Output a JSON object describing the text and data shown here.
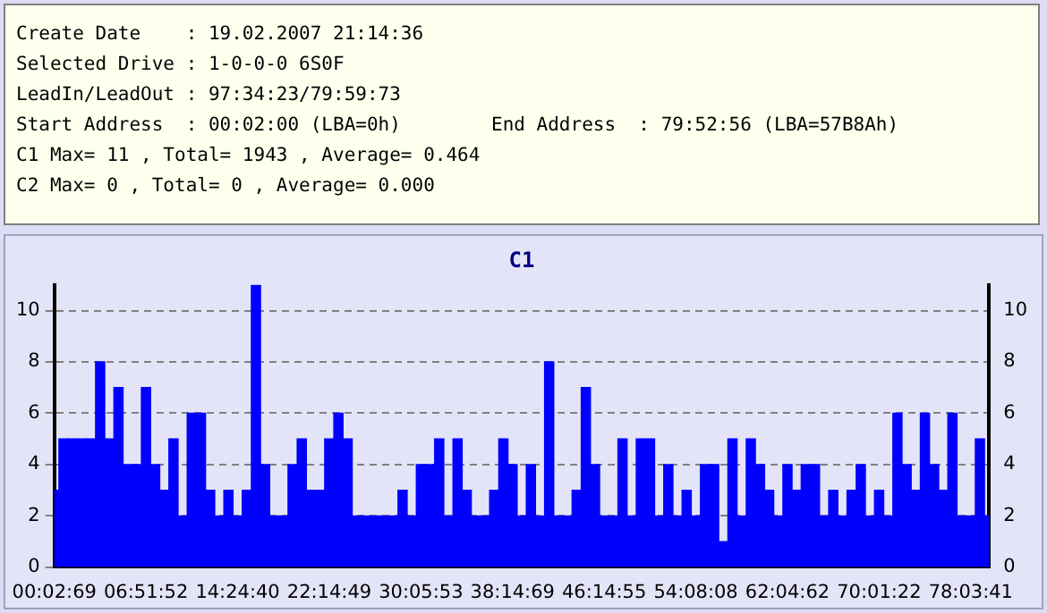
{
  "chart_data": {
    "type": "bar",
    "title": "C1",
    "annotations": [
      "Create Date    : 19.02.2007 21:14:36",
      "Selected Drive : 1-0-0-0 6S0F",
      "LeadIn/LeadOut : 97:34:23/79:59:73",
      "Start Address  : 00:02:00 (LBA=0h)        End Address  : 79:52:56 (LBA=57B8Ah)",
      "C1 Max= 11 , Total= 1943 , Average= 0.464",
      "C2 Max= 0 , Total= 0 , Average= 0.000"
    ],
    "categories": [
      "00:02:69",
      null,
      null,
      null,
      null,
      null,
      null,
      null,
      null,
      null,
      "06:51:52",
      null,
      null,
      null,
      null,
      null,
      null,
      null,
      null,
      null,
      "14:24:40",
      null,
      null,
      null,
      null,
      null,
      null,
      null,
      null,
      null,
      "22:14:49",
      null,
      null,
      null,
      null,
      null,
      null,
      null,
      null,
      null,
      "30:05:53",
      null,
      null,
      null,
      null,
      null,
      null,
      null,
      null,
      null,
      "38:14:69",
      null,
      null,
      null,
      null,
      null,
      null,
      null,
      null,
      null,
      "46:14:55",
      null,
      null,
      null,
      null,
      null,
      null,
      null,
      null,
      null,
      "54:08:08",
      null,
      null,
      null,
      null,
      null,
      null,
      null,
      null,
      null,
      "62:04:62",
      null,
      null,
      null,
      null,
      null,
      null,
      null,
      null,
      null,
      "70:01:22",
      null,
      null,
      null,
      null,
      null,
      null,
      null,
      null,
      null,
      "78:03:41",
      null,
      null
    ],
    "values": [
      3,
      5,
      5,
      5,
      5,
      8,
      5,
      7,
      4,
      4,
      7,
      4,
      3,
      5,
      2,
      6,
      6,
      3,
      2,
      3,
      2,
      3,
      11,
      4,
      2,
      2,
      4,
      5,
      3,
      3,
      5,
      6,
      5,
      2,
      2,
      2,
      2,
      2,
      3,
      2,
      4,
      4,
      5,
      2,
      5,
      3,
      2,
      2,
      3,
      5,
      4,
      2,
      4,
      2,
      8,
      2,
      2,
      3,
      7,
      4,
      2,
      2,
      5,
      2,
      5,
      5,
      2,
      4,
      2,
      3,
      2,
      4,
      4,
      1,
      5,
      2,
      5,
      4,
      3,
      2,
      4,
      3,
      4,
      4,
      2,
      3,
      2,
      3,
      4,
      2,
      3,
      2,
      6,
      4,
      3,
      6,
      4,
      3,
      6,
      2,
      2,
      5,
      2
    ],
    "color": "#0000ff",
    "ylim": [
      0,
      11
    ],
    "yticks": [
      0,
      2,
      4,
      6,
      8,
      10
    ],
    "y2lim": [
      0,
      11
    ],
    "y2ticks": [
      0,
      2,
      4,
      6,
      8,
      10
    ],
    "grid": "y"
  }
}
